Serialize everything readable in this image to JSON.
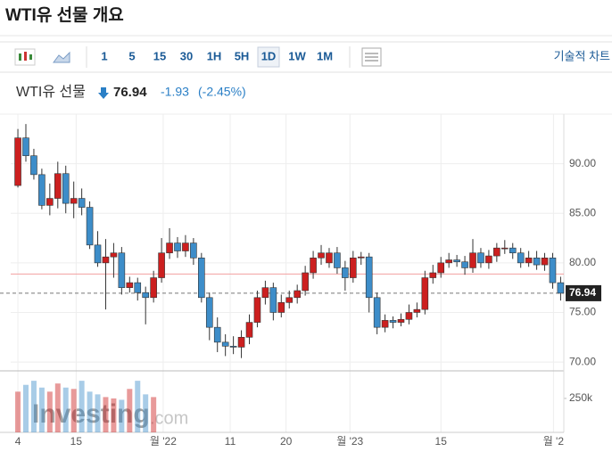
{
  "header": {
    "title": "WTI유 선물 개요"
  },
  "toolbar": {
    "intervals": [
      "1",
      "5",
      "15",
      "30",
      "1H",
      "5H",
      "1D",
      "1W",
      "1M"
    ],
    "active_index": 6,
    "link": "기술적 차트"
  },
  "quote": {
    "name": "WTI유 선물",
    "price": "76.94",
    "change": "-1.93",
    "change_pct": "(-2.45%)"
  },
  "watermark": {
    "brand": "Investing",
    "suffix": ".com"
  },
  "chart_data": {
    "type": "candlestick",
    "up_color": "#cc1f1f",
    "down_color": "#3d8dc9",
    "open": [
      87.8,
      92.6,
      90.8,
      88.9,
      85.8,
      86.5,
      89.0,
      86.0,
      86.5,
      85.6,
      81.8,
      80.0,
      80.6,
      81.0,
      77.5,
      78.0,
      77.0,
      76.5,
      78.5,
      81.0,
      82.0,
      81.2,
      82.0,
      80.5,
      76.5,
      73.5,
      72.0,
      71.6,
      71.5,
      72.5,
      74.0,
      76.5,
      77.5,
      75.0,
      76.0,
      76.5,
      77.2,
      79.0,
      80.5,
      80.0,
      81.0,
      79.5,
      78.5,
      80.5,
      80.6,
      76.5,
      73.5,
      74.2,
      74.0,
      74.3,
      75.0,
      75.3,
      78.5,
      79.0,
      80.0,
      80.3,
      80.1,
      79.5,
      81.0,
      80.0,
      80.7,
      81.5,
      81.5,
      81.0,
      80.0,
      80.5,
      79.8,
      80.5,
      78.0
    ],
    "high": [
      93.5,
      94.0,
      91.5,
      89.5,
      88.0,
      90.2,
      89.8,
      88.2,
      87.5,
      86.2,
      83.2,
      82.4,
      82.0,
      81.6,
      78.6,
      78.5,
      77.6,
      79.2,
      82.5,
      83.5,
      82.6,
      82.8,
      82.5,
      81.0,
      77.0,
      74.5,
      72.8,
      72.6,
      73.2,
      74.8,
      77.2,
      78.2,
      78.0,
      76.8,
      77.2,
      77.8,
      79.7,
      81.2,
      81.8,
      81.5,
      81.6,
      80.2,
      81.2,
      81.1,
      81.0,
      77.0,
      74.8,
      74.6,
      74.9,
      75.8,
      76.0,
      79.2,
      79.8,
      80.6,
      81.0,
      80.8,
      80.7,
      82.4,
      81.5,
      81.3,
      82.0,
      82.3,
      82.0,
      81.5,
      81.2,
      81.2,
      81.0,
      81.0,
      78.6
    ],
    "low": [
      87.6,
      90.2,
      88.4,
      85.4,
      84.8,
      85.5,
      85.0,
      84.5,
      84.8,
      81.4,
      79.6,
      75.3,
      78.5,
      76.8,
      77.0,
      76.2,
      73.8,
      76.0,
      78.0,
      80.4,
      80.5,
      80.6,
      79.8,
      76.0,
      72.2,
      71.0,
      70.6,
      70.8,
      70.4,
      71.8,
      73.5,
      75.8,
      74.2,
      74.5,
      75.4,
      75.9,
      76.7,
      78.4,
      79.8,
      79.5,
      78.9,
      77.2,
      78.0,
      79.8,
      75.0,
      72.8,
      73.0,
      73.4,
      73.6,
      73.8,
      74.5,
      74.8,
      77.9,
      78.5,
      79.5,
      79.6,
      78.8,
      79.0,
      79.5,
      79.4,
      80.1,
      80.9,
      80.4,
      79.5,
      79.6,
      79.3,
      79.2,
      77.4,
      76.2
    ],
    "close": [
      92.6,
      90.8,
      88.9,
      85.8,
      86.5,
      89.0,
      86.0,
      86.5,
      85.6,
      81.8,
      80.0,
      80.6,
      81.0,
      77.5,
      78.0,
      77.0,
      76.5,
      78.5,
      81.0,
      82.0,
      81.2,
      82.0,
      80.5,
      76.5,
      73.5,
      72.0,
      71.6,
      71.5,
      72.5,
      74.0,
      76.5,
      77.5,
      75.0,
      76.0,
      76.5,
      77.2,
      79.0,
      80.5,
      81.0,
      81.0,
      79.5,
      78.5,
      80.5,
      80.6,
      76.5,
      73.5,
      74.2,
      74.0,
      74.3,
      75.0,
      75.3,
      78.5,
      79.0,
      80.0,
      80.3,
      80.1,
      79.5,
      81.0,
      80.0,
      80.7,
      81.5,
      81.5,
      81.0,
      80.0,
      80.5,
      79.8,
      80.5,
      78.0,
      76.94
    ],
    "volume": [
      300000,
      350000,
      380000,
      330000,
      300000,
      360000,
      330000,
      320000,
      380000,
      300000,
      280000,
      260000,
      250000,
      240000,
      320000,
      380000,
      280000,
      260000,
      null,
      null,
      null,
      null,
      null,
      null,
      null,
      null,
      null,
      null,
      null,
      null,
      null,
      null,
      null,
      null,
      null,
      null,
      null,
      null,
      null,
      null,
      null,
      null,
      null,
      null,
      null,
      null,
      null,
      null,
      null,
      null,
      null,
      null,
      null,
      null,
      null,
      null,
      null,
      null,
      null,
      null,
      null,
      null,
      null,
      null,
      null,
      null,
      null,
      null,
      null
    ],
    "prev_close": 78.87,
    "xlim": [
      -0.9,
      68.4
    ],
    "xticks": [
      {
        "value": 0,
        "label": "4"
      },
      {
        "value": 7.3,
        "label": "15"
      },
      {
        "value": 18.2,
        "label": "월 '22"
      },
      {
        "value": 26.6,
        "label": "11"
      },
      {
        "value": 33.6,
        "label": "20"
      },
      {
        "value": 41.6,
        "label": "월 '23"
      },
      {
        "value": 53,
        "label": "15"
      },
      {
        "value": 67.1,
        "label": "월 '2"
      }
    ],
    "ylim": [
      69.2,
      95
    ],
    "yticks": [
      {
        "value": 70,
        "label": "70.00"
      },
      {
        "value": 75,
        "label": "75.00"
      },
      {
        "value": 80,
        "label": "80.00"
      },
      {
        "value": 85,
        "label": "85.00"
      },
      {
        "value": 90,
        "label": "90.00"
      }
    ],
    "vlim": [
      0,
      440000
    ],
    "vticks": [
      {
        "value": 250000,
        "label": "250k"
      }
    ],
    "grid": true
  }
}
